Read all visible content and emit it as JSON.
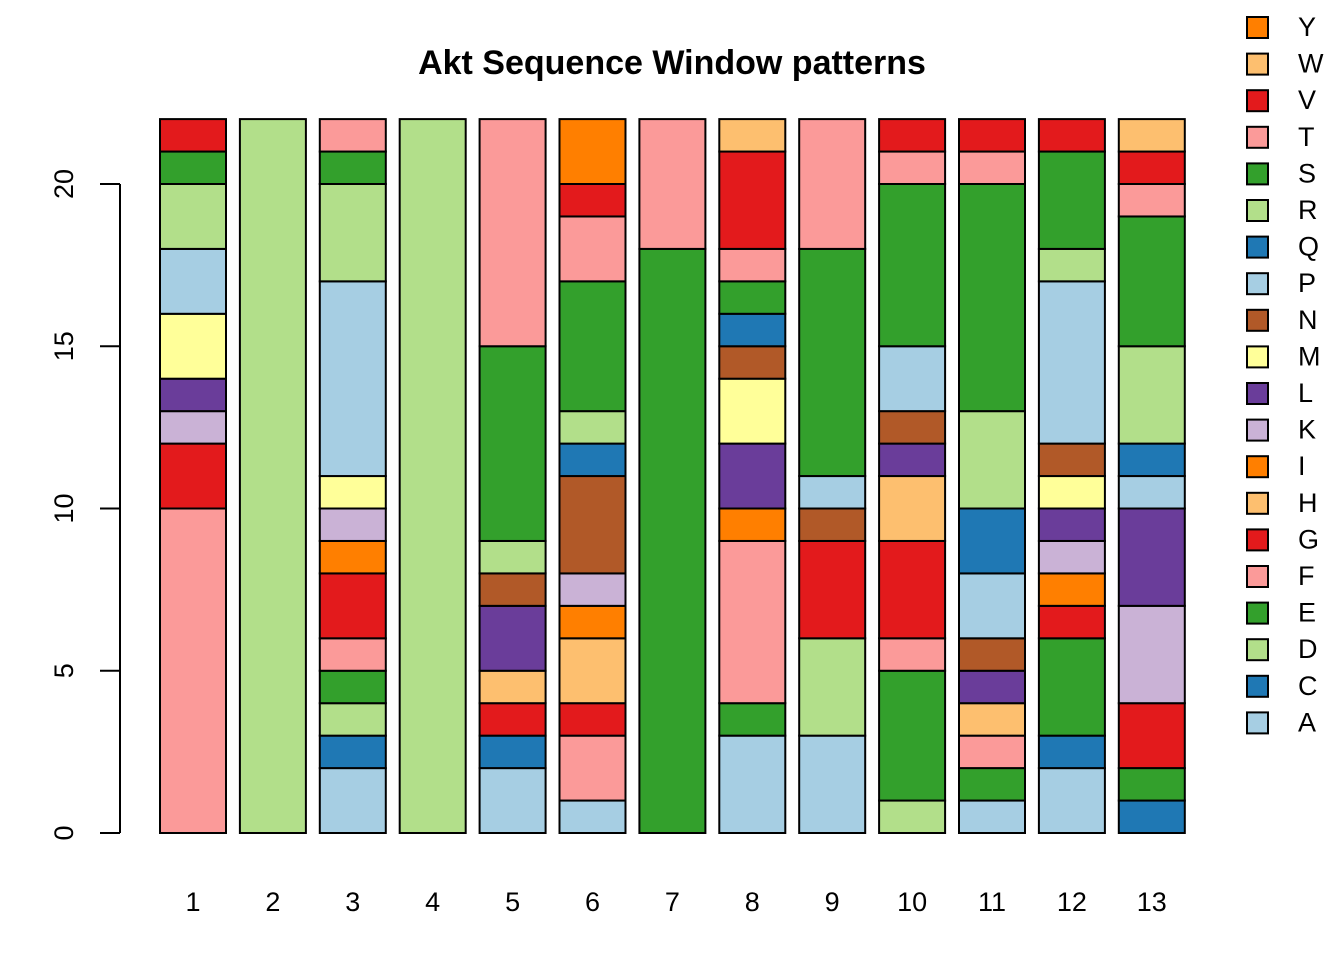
{
  "chart_data": {
    "type": "bar",
    "stacked": true,
    "title": "Akt Sequence Window patterns",
    "xlabel": "",
    "ylabel": "",
    "categories": [
      "1",
      "2",
      "3",
      "4",
      "5",
      "6",
      "7",
      "8",
      "9",
      "10",
      "11",
      "12",
      "13"
    ],
    "ylim": [
      0,
      22
    ],
    "yticks": [
      0,
      5,
      10,
      15,
      20
    ],
    "grid": false,
    "legend_position": "right",
    "series": [
      {
        "name": "A",
        "color": "#A6CEE3",
        "values": [
          0,
          0,
          2,
          0,
          2,
          1,
          0,
          3,
          3,
          0,
          1,
          2,
          0
        ]
      },
      {
        "name": "C",
        "color": "#1F78B4",
        "values": [
          0,
          0,
          1,
          0,
          1,
          0,
          0,
          0,
          0,
          0,
          0,
          1,
          1
        ]
      },
      {
        "name": "D",
        "color": "#B2DF8A",
        "values": [
          0,
          22,
          1,
          22,
          0,
          0,
          0,
          0,
          3,
          1,
          0,
          0,
          0
        ]
      },
      {
        "name": "E",
        "color": "#33A02C",
        "values": [
          0,
          0,
          1,
          0,
          0,
          0,
          18,
          1,
          0,
          4,
          1,
          3,
          1
        ]
      },
      {
        "name": "F",
        "color": "#FB9A99",
        "values": [
          10,
          0,
          1,
          0,
          0,
          2,
          0,
          5,
          0,
          1,
          1,
          0,
          0
        ]
      },
      {
        "name": "G",
        "color": "#E31A1C",
        "values": [
          2,
          0,
          2,
          0,
          1,
          1,
          0,
          0,
          3,
          3,
          0,
          1,
          2
        ]
      },
      {
        "name": "H",
        "color": "#FDBF6F",
        "values": [
          0,
          0,
          0,
          0,
          1,
          2,
          0,
          0,
          0,
          2,
          1,
          0,
          0
        ]
      },
      {
        "name": "I",
        "color": "#FF7F00",
        "values": [
          0,
          0,
          1,
          0,
          0,
          1,
          0,
          1,
          0,
          0,
          0,
          1,
          0
        ]
      },
      {
        "name": "K",
        "color": "#CAB2D6",
        "values": [
          1,
          0,
          1,
          0,
          0,
          1,
          0,
          0,
          0,
          0,
          0,
          1,
          3
        ]
      },
      {
        "name": "L",
        "color": "#6A3D9A",
        "values": [
          1,
          0,
          0,
          0,
          2,
          0,
          0,
          2,
          0,
          1,
          1,
          1,
          3
        ]
      },
      {
        "name": "M",
        "color": "#FFFF99",
        "values": [
          2,
          0,
          1,
          0,
          0,
          0,
          0,
          2,
          0,
          0,
          0,
          1,
          0
        ]
      },
      {
        "name": "N",
        "color": "#B15928",
        "values": [
          0,
          0,
          0,
          0,
          1,
          3,
          0,
          1,
          1,
          1,
          1,
          1,
          0
        ]
      },
      {
        "name": "P",
        "color": "#A6CEE3",
        "values": [
          2,
          0,
          6,
          0,
          0,
          0,
          0,
          0,
          1,
          2,
          2,
          5,
          1
        ]
      },
      {
        "name": "Q",
        "color": "#1F78B4",
        "values": [
          0,
          0,
          0,
          0,
          0,
          1,
          0,
          1,
          0,
          0,
          2,
          0,
          1
        ]
      },
      {
        "name": "R",
        "color": "#B2DF8A",
        "values": [
          2,
          0,
          3,
          0,
          1,
          1,
          0,
          0,
          0,
          0,
          3,
          1,
          3
        ]
      },
      {
        "name": "S",
        "color": "#33A02C",
        "values": [
          1,
          0,
          1,
          0,
          6,
          4,
          0,
          1,
          7,
          5,
          7,
          3,
          4
        ]
      },
      {
        "name": "T",
        "color": "#FB9A99",
        "values": [
          0,
          0,
          1,
          0,
          7,
          2,
          4,
          1,
          4,
          1,
          1,
          0,
          1
        ]
      },
      {
        "name": "V",
        "color": "#E31A1C",
        "values": [
          1,
          0,
          0,
          0,
          0,
          1,
          0,
          3,
          0,
          1,
          1,
          1,
          1
        ]
      },
      {
        "name": "W",
        "color": "#FDBF6F",
        "values": [
          0,
          0,
          0,
          0,
          0,
          0,
          0,
          1,
          0,
          0,
          0,
          0,
          1
        ]
      },
      {
        "name": "Y",
        "color": "#FF7F00",
        "values": [
          0,
          0,
          0,
          0,
          0,
          2,
          0,
          0,
          0,
          0,
          0,
          0,
          0
        ]
      }
    ]
  }
}
